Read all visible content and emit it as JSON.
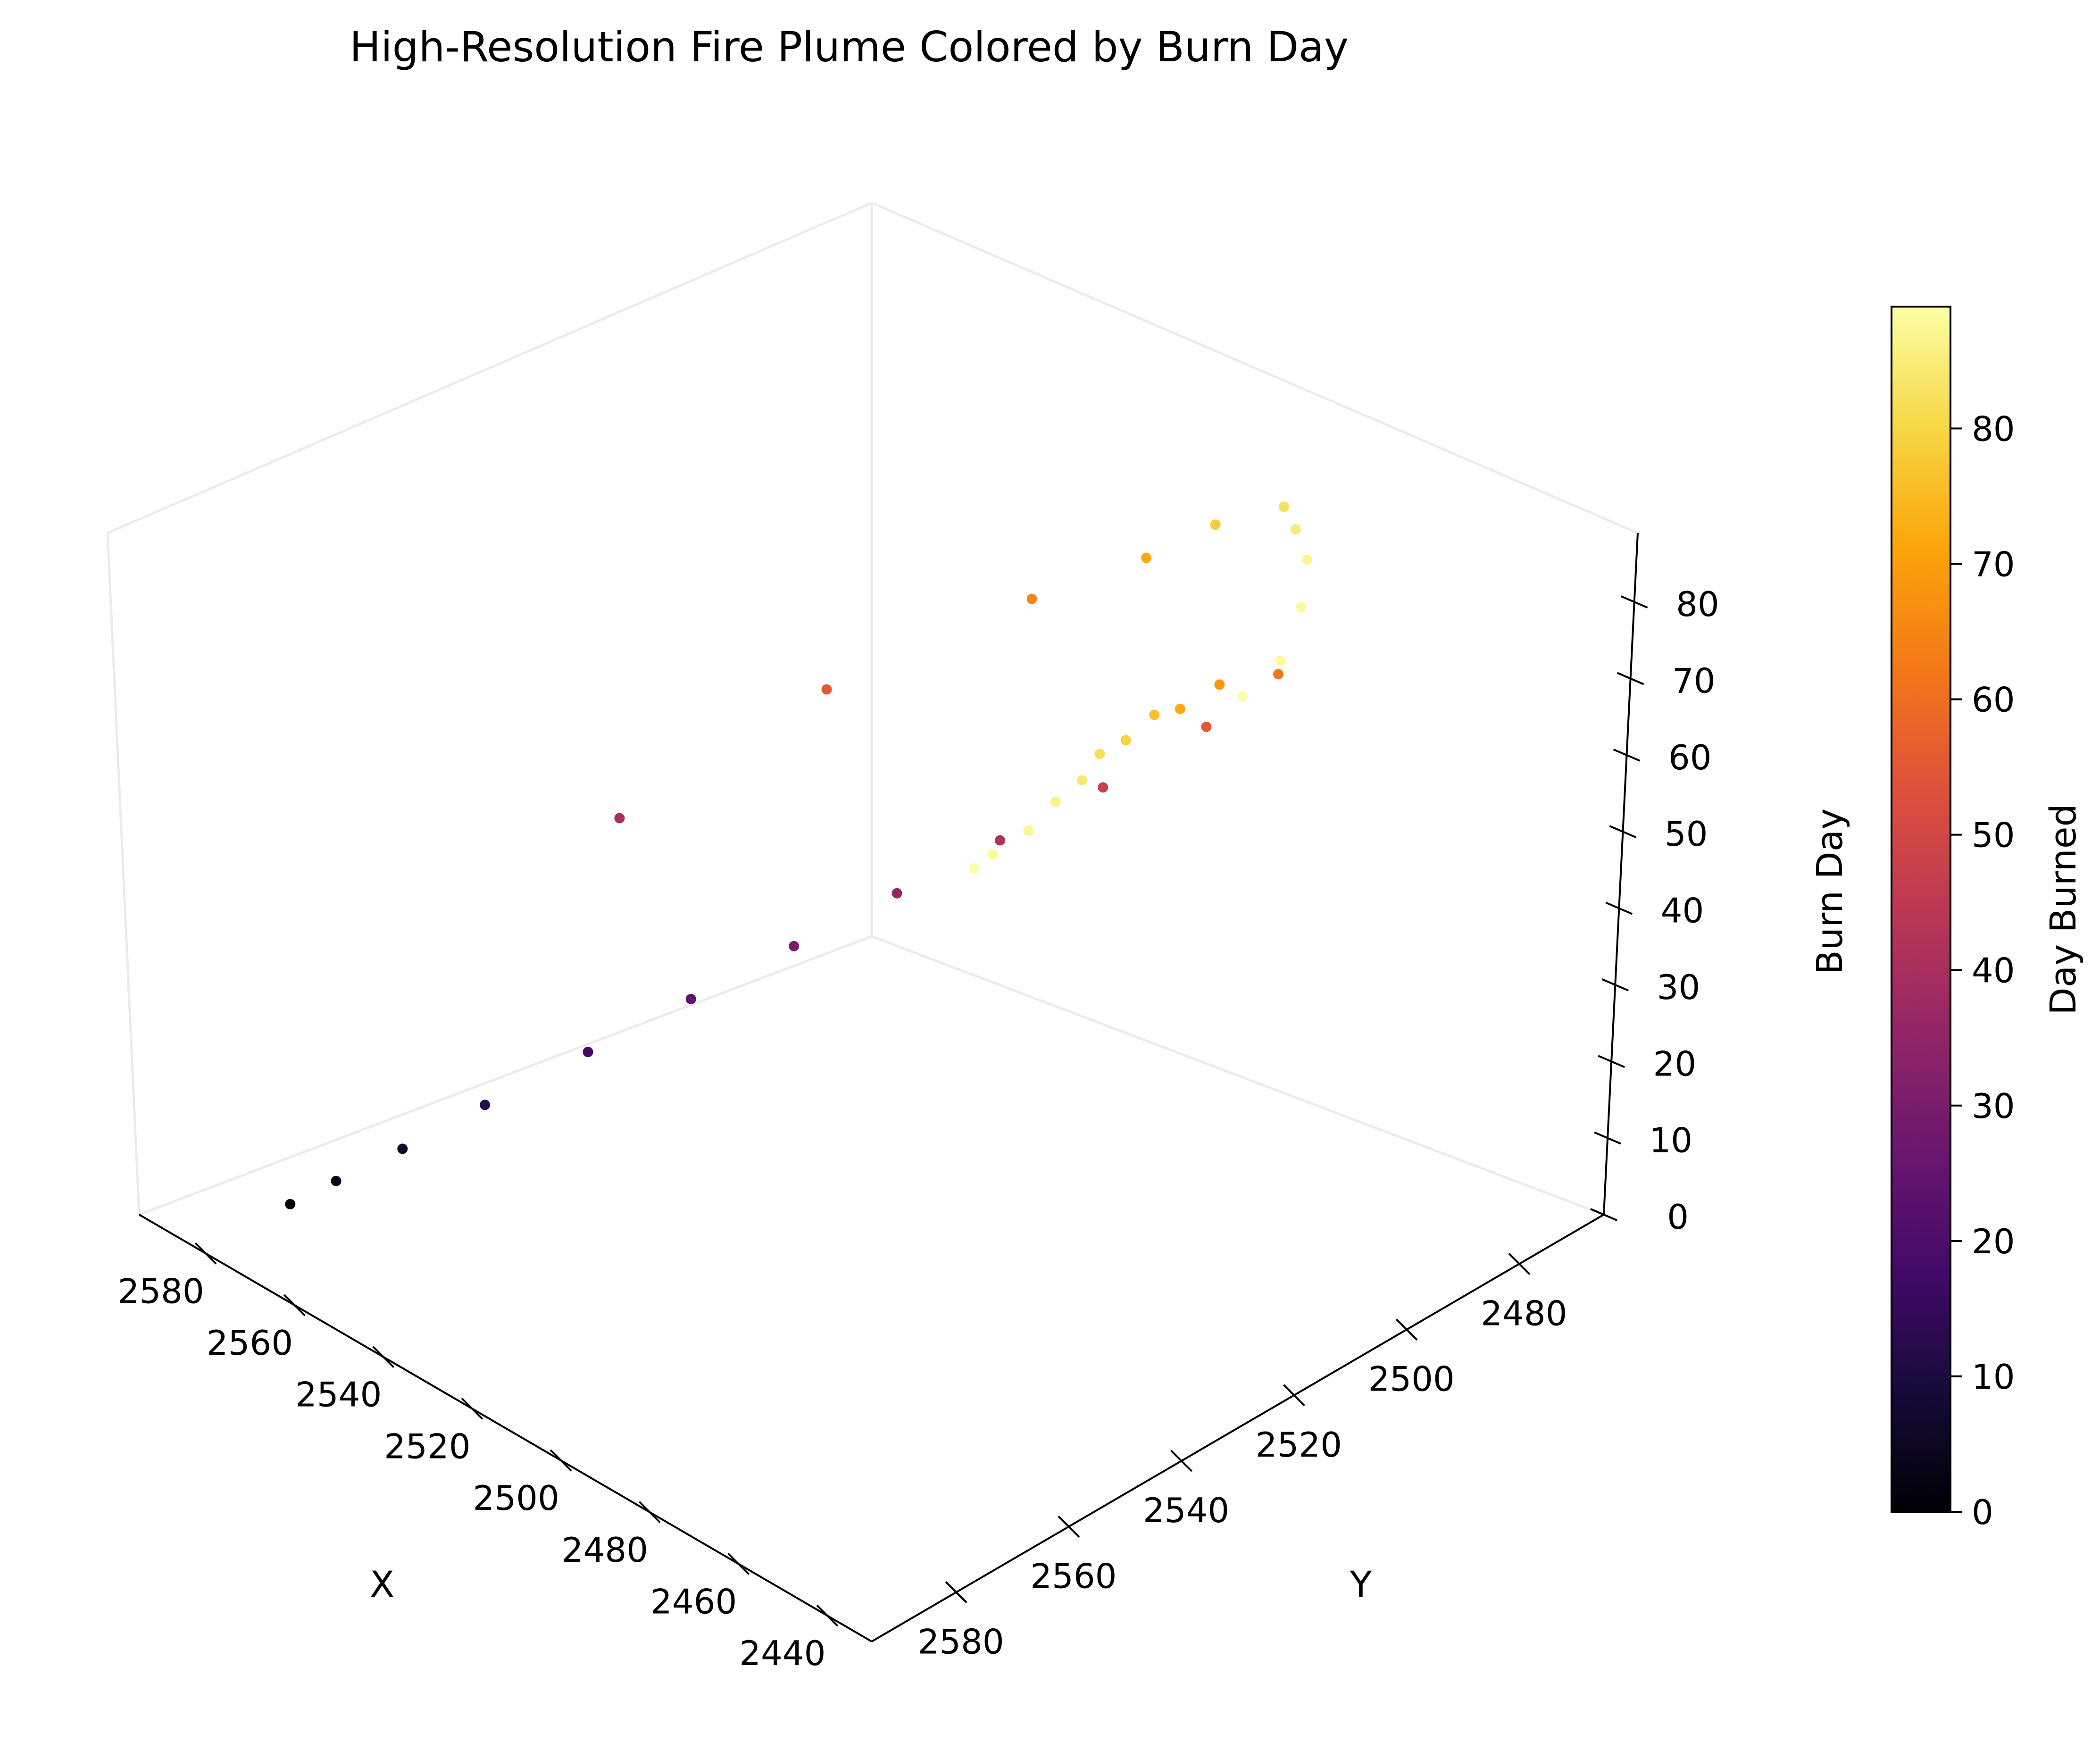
{
  "chart_data": {
    "type": "scatter",
    "projection": "3d",
    "title": "High-Resolution Fire Plume Colored by Burn Day",
    "xlabel": "X",
    "ylabel": "Y",
    "zlabel": "Burn Day",
    "xlim": [
      2430,
      2595
    ],
    "ylim": [
      2465,
      2595
    ],
    "zlim": [
      0,
      89
    ],
    "xticks": [
      2440,
      2460,
      2480,
      2500,
      2520,
      2540,
      2560,
      2580
    ],
    "yticks": [
      2480,
      2500,
      2520,
      2540,
      2560,
      2580
    ],
    "zticks": [
      0,
      10,
      20,
      30,
      40,
      50,
      60,
      70,
      80
    ],
    "xtick_labels": [
      "2440",
      "2460",
      "2480",
      "2500",
      "2520",
      "2540",
      "2560",
      "2580"
    ],
    "ytick_labels": [
      "2480",
      "2500",
      "2520",
      "2540",
      "2560",
      "2580"
    ],
    "ztick_labels": [
      "0",
      "10",
      "20",
      "30",
      "40",
      "50",
      "60",
      "70",
      "80"
    ],
    "colormap": "inferno",
    "colorbar": {
      "label": "Day Burned",
      "min": 0,
      "max": 89,
      "ticks": [
        0,
        10,
        20,
        30,
        40,
        50,
        60,
        70,
        80
      ],
      "tick_labels": [
        "0",
        "10",
        "20",
        "30",
        "40",
        "50",
        "60",
        "70",
        "80"
      ]
    },
    "grid": false,
    "legend": "none",
    "series": [
      {
        "points_x": [
          2580,
          2575,
          2568,
          2560,
          2550,
          2540,
          2530,
          2520,
          2510,
          2500,
          2490,
          2482,
          2478,
          2472,
          2468,
          2462,
          2458,
          2452,
          2448,
          2444,
          2442,
          2440,
          2560,
          2540,
          2520,
          2505,
          2495,
          2485,
          2475,
          2465,
          2455,
          2447,
          2443
        ],
        "points_y": [
          2580,
          2576,
          2570,
          2562,
          2552,
          2542,
          2532,
          2522,
          2512,
          2502,
          2492,
          2486,
          2500,
          2512,
          2520,
          2530,
          2538,
          2546,
          2554,
          2562,
          2570,
          2575,
          2540,
          2520,
          2500,
          2492,
          2488,
          2484,
          2490,
          2496,
          2505,
          2515,
          2525
        ],
        "points_z": [
          0,
          3,
          7,
          12,
          18,
          24,
          30,
          36,
          42,
          48,
          55,
          62,
          68,
          72,
          76,
          79,
          82,
          84,
          86,
          87,
          88,
          89,
          40,
          55,
          65,
          72,
          78,
          82,
          85,
          87,
          88,
          88,
          89
        ]
      }
    ]
  }
}
